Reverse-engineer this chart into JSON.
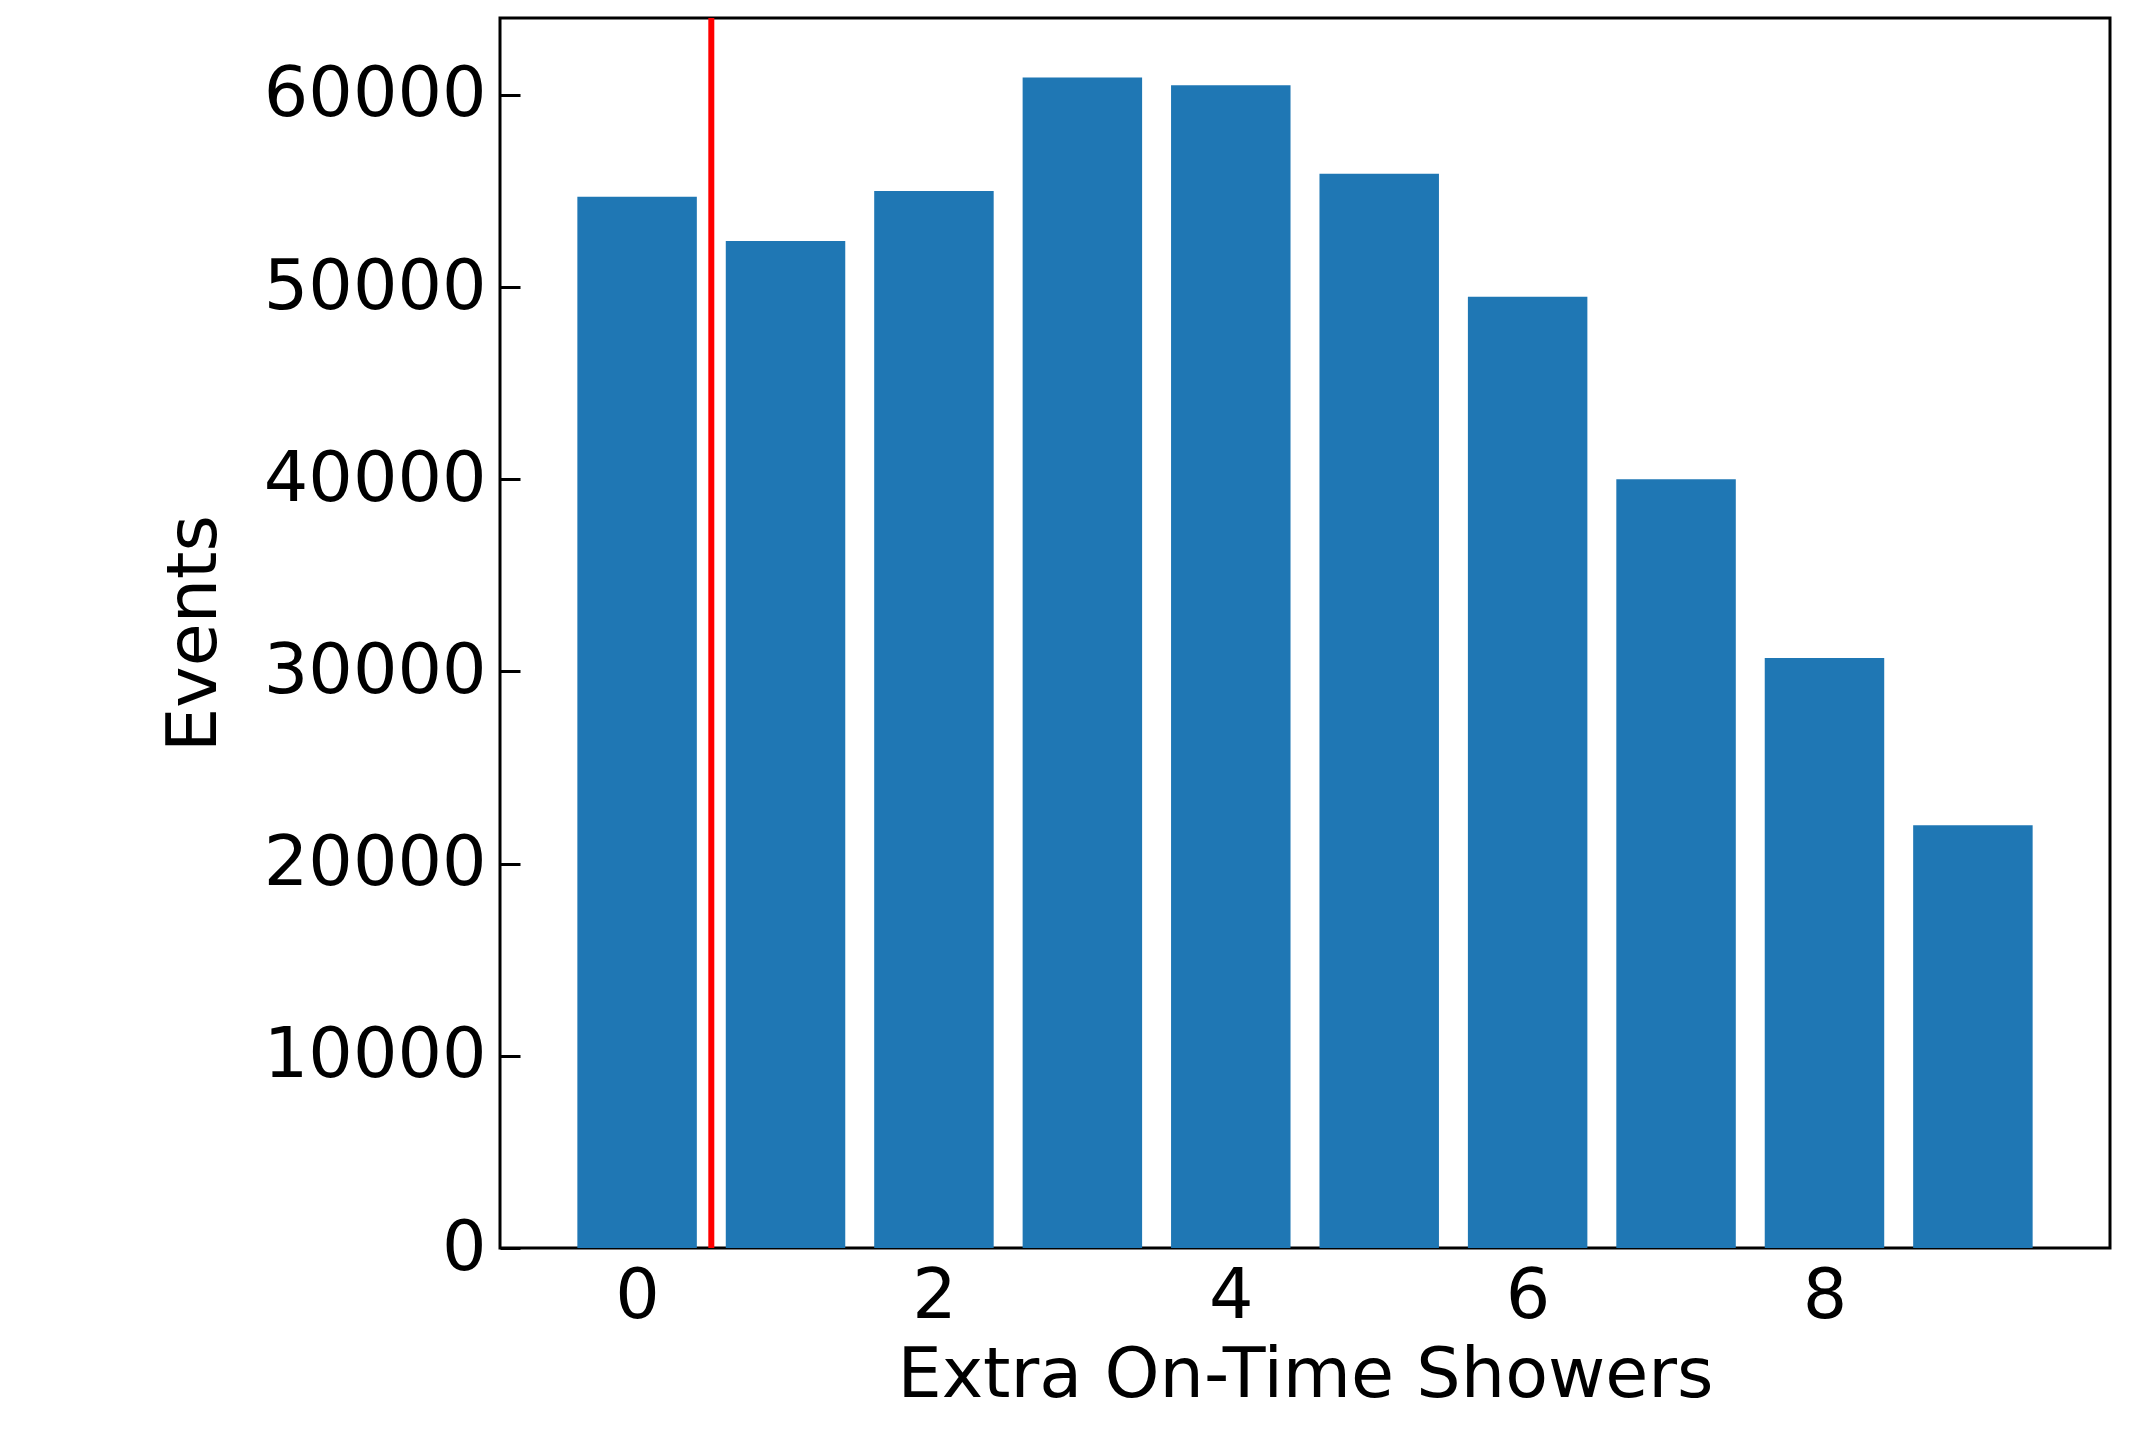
{
  "chart_data": {
    "type": "bar",
    "xlabel": "Extra On-Time Showers",
    "ylabel": "Events",
    "x": [
      0,
      1,
      2,
      3,
      4,
      5,
      6,
      7,
      8,
      9
    ],
    "values": [
      54700,
      52400,
      55000,
      60900,
      60500,
      55900,
      49500,
      40000,
      30700,
      22000
    ],
    "color": "#1f77b4",
    "xlim": [
      -0.89,
      9.89
    ],
    "xticks": [
      0,
      2,
      4,
      6,
      8
    ],
    "ylim": [
      0,
      64000
    ],
    "yticks": [
      0,
      10000,
      20000,
      30000,
      40000,
      50000,
      60000
    ],
    "ref_lines": [
      {
        "axis": "x",
        "value": 0.5,
        "color": "#ff0000"
      }
    ],
    "grid": false
  }
}
